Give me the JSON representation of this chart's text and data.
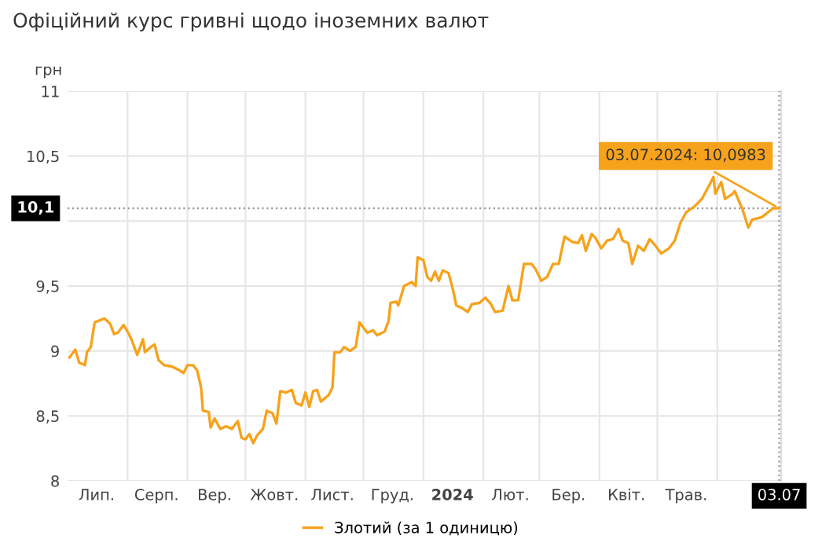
{
  "chart_data": {
    "type": "line",
    "title": "Офіційний курс гривні щодо іноземних валют",
    "ylabel": "грн",
    "x": [
      "2023-07-02",
      "2023-07-03",
      "2023-07-05",
      "2023-07-07",
      "2023-07-10",
      "2023-07-11",
      "2023-07-13",
      "2023-07-15",
      "2023-07-20",
      "2023-07-23",
      "2023-07-25",
      "2023-07-27",
      "2023-07-30",
      "2023-08-01",
      "2023-08-03",
      "2023-08-06",
      "2023-08-09",
      "2023-08-10",
      "2023-08-13",
      "2023-08-15",
      "2023-08-17",
      "2023-08-20",
      "2023-08-24",
      "2023-08-28",
      "2023-08-30",
      "2023-09-01",
      "2023-09-04",
      "2023-09-06",
      "2023-09-08",
      "2023-09-09",
      "2023-09-12",
      "2023-09-13",
      "2023-09-15",
      "2023-09-18",
      "2023-09-21",
      "2023-09-24",
      "2023-09-27",
      "2023-09-29",
      "2023-10-01",
      "2023-10-03",
      "2023-10-05",
      "2023-10-07",
      "2023-10-10",
      "2023-10-12",
      "2023-10-15",
      "2023-10-17",
      "2023-10-19",
      "2023-10-22",
      "2023-10-25",
      "2023-10-27",
      "2023-10-30",
      "2023-11-01",
      "2023-11-03",
      "2023-11-05",
      "2023-11-07",
      "2023-11-09",
      "2023-11-13",
      "2023-11-15",
      "2023-11-16",
      "2023-11-19",
      "2023-11-21",
      "2023-11-24",
      "2023-11-27",
      "2023-11-29",
      "2023-12-03",
      "2023-12-06",
      "2023-12-08",
      "2023-12-12",
      "2023-12-14",
      "2023-12-15",
      "2023-12-18",
      "2023-12-19",
      "2023-12-22",
      "2023-12-26",
      "2023-12-28",
      "2023-12-29",
      "2024-01-01",
      "2024-01-03",
      "2024-01-05",
      "2024-01-07",
      "2024-01-09",
      "2024-01-11",
      "2024-01-14",
      "2024-01-16",
      "2024-01-18",
      "2024-01-21",
      "2024-01-24",
      "2024-01-26",
      "2024-01-30",
      "2024-02-02",
      "2024-02-05",
      "2024-02-07",
      "2024-02-11",
      "2024-02-14",
      "2024-02-16",
      "2024-02-19",
      "2024-02-22",
      "2024-02-26",
      "2024-02-28",
      "2024-03-02",
      "2024-03-05",
      "2024-03-08",
      "2024-03-11",
      "2024-03-14",
      "2024-03-18",
      "2024-03-21",
      "2024-03-23",
      "2024-03-25",
      "2024-03-28",
      "2024-03-30",
      "2024-04-02",
      "2024-04-05",
      "2024-04-08",
      "2024-04-11",
      "2024-04-13",
      "2024-04-16",
      "2024-04-18",
      "2024-04-21",
      "2024-04-24",
      "2024-04-27",
      "2024-04-30",
      "2024-05-03",
      "2024-05-07",
      "2024-05-10",
      "2024-05-13",
      "2024-05-16",
      "2024-05-20",
      "2024-05-24",
      "2024-05-28",
      "2024-05-30",
      "2024-05-31",
      "2024-06-03",
      "2024-06-05",
      "2024-06-09",
      "2024-06-10",
      "2024-06-14",
      "2024-06-17",
      "2024-06-19",
      "2024-06-24",
      "2024-06-30",
      "2024-07-03"
    ],
    "series": [
      {
        "name": "Злотий (за 1 одиницю)",
        "color": "#f7a21b",
        "values": [
          8.95,
          8.97,
          9.01,
          8.91,
          8.89,
          8.99,
          9.03,
          9.22,
          9.25,
          9.21,
          9.13,
          9.14,
          9.2,
          9.15,
          9.09,
          8.97,
          9.09,
          8.99,
          9.03,
          9.05,
          8.93,
          8.89,
          8.88,
          8.85,
          8.83,
          8.89,
          8.89,
          8.85,
          8.72,
          8.54,
          8.53,
          8.41,
          8.48,
          8.4,
          8.42,
          8.4,
          8.46,
          8.33,
          8.32,
          8.36,
          8.29,
          8.35,
          8.4,
          8.54,
          8.52,
          8.44,
          8.69,
          8.68,
          8.7,
          8.6,
          8.58,
          8.68,
          8.57,
          8.69,
          8.7,
          8.61,
          8.66,
          8.72,
          8.99,
          8.99,
          9.03,
          9.0,
          9.03,
          9.22,
          9.14,
          9.16,
          9.12,
          9.15,
          9.23,
          9.37,
          9.38,
          9.35,
          9.5,
          9.53,
          9.5,
          9.72,
          9.7,
          9.57,
          9.54,
          9.61,
          9.54,
          9.62,
          9.6,
          9.49,
          9.35,
          9.33,
          9.3,
          9.36,
          9.37,
          9.41,
          9.36,
          9.3,
          9.31,
          9.5,
          9.39,
          9.39,
          9.67,
          9.67,
          9.63,
          9.54,
          9.57,
          9.67,
          9.67,
          9.88,
          9.84,
          9.83,
          9.89,
          9.77,
          9.9,
          9.87,
          9.79,
          9.85,
          9.86,
          9.94,
          9.85,
          9.83,
          9.67,
          9.81,
          9.77,
          9.86,
          9.81,
          9.75,
          9.79,
          9.85,
          9.99,
          10.07,
          10.11,
          10.17,
          10.28,
          10.34,
          10.21,
          10.3,
          10.17,
          10.21,
          10.23,
          10.09,
          9.95,
          10.01,
          10.03,
          10.1,
          10.0983
        ]
      }
    ],
    "xlim": [
      "2023-07-01",
      "2024-07-04"
    ],
    "xticks": [
      {
        "value": "2023-07-16",
        "label": "Лип."
      },
      {
        "value": "2023-08-16",
        "label": "Серп."
      },
      {
        "value": "2023-09-15",
        "label": "Вер."
      },
      {
        "value": "2023-10-16",
        "label": "Жовт."
      },
      {
        "value": "2023-11-15",
        "label": "Лист."
      },
      {
        "value": "2023-12-16",
        "label": "Груд."
      },
      {
        "value": "2024-01-16",
        "label": "2024"
      },
      {
        "value": "2024-02-15",
        "label": "Лют."
      },
      {
        "value": "2024-03-16",
        "label": "Бер."
      },
      {
        "value": "2024-04-15",
        "label": "Квіт."
      },
      {
        "value": "2024-05-16",
        "label": "Трав."
      },
      {
        "value": "2024-07-03",
        "label": "03.07"
      }
    ],
    "ylim": [
      8,
      11
    ],
    "yticks": [
      8,
      {
        "value": 8.5,
        "label": "8,5"
      },
      9,
      {
        "value": 9.5,
        "label": "9,5"
      },
      {
        "value": 10,
        "label": null
      },
      {
        "value": 10.5,
        "label": "10,5"
      },
      11
    ],
    "ref_lines": [
      {
        "axis": "y",
        "value": 10.0983,
        "label": "10,1",
        "color": "#999999",
        "line_style": "dotted"
      },
      {
        "axis": "x",
        "value": "2024-07-03",
        "label": null,
        "color": "#999999",
        "line_style": "dotted"
      }
    ],
    "annotations": [
      {
        "text": "03.07.2024: 10,0983",
        "x": "2024-07-03",
        "y": 10.0983
      }
    ],
    "grid": true,
    "legend": "bottom",
    "marker": "none",
    "line_style": "solid"
  }
}
